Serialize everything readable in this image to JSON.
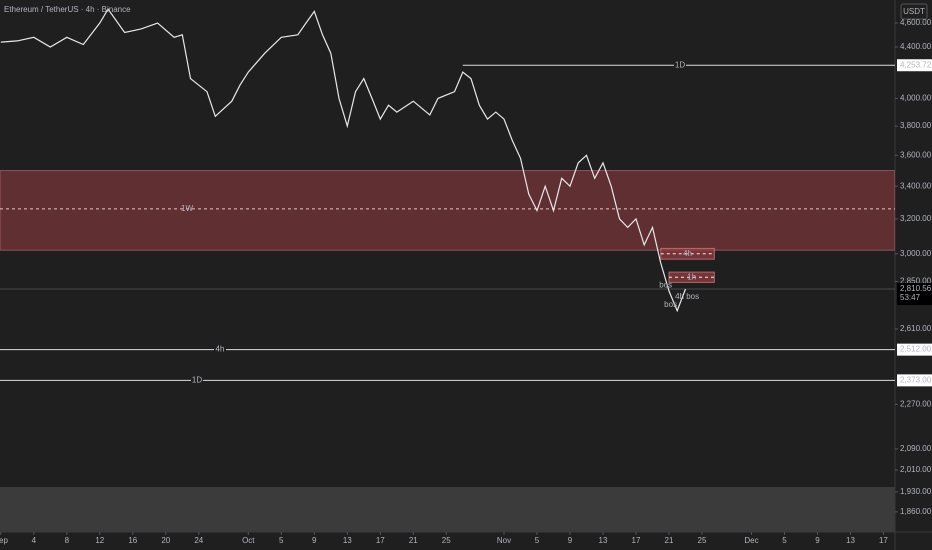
{
  "chart_data": {
    "type": "line",
    "title": "Ethereum / TetherUS · 4h · Binance",
    "currency_button": "USDT",
    "color": "#e8e8e8",
    "log_scale": true,
    "x": [
      0,
      2,
      4,
      6,
      8,
      10,
      12,
      13,
      15,
      17,
      19,
      21,
      22,
      23,
      25,
      26,
      28,
      29,
      30,
      32,
      34,
      36,
      37,
      38,
      39,
      40,
      41,
      42,
      43,
      44,
      45,
      46,
      47,
      48,
      50,
      52,
      53,
      55,
      56,
      57,
      58,
      59,
      60,
      61,
      62,
      63,
      64,
      65,
      66,
      67,
      68,
      69,
      70,
      71,
      72,
      73,
      74,
      75,
      76,
      77,
      78,
      79,
      80,
      81,
      82,
      83
    ],
    "values": [
      4440,
      4450,
      4480,
      4400,
      4480,
      4420,
      4600,
      4720,
      4520,
      4550,
      4600,
      4480,
      4500,
      4150,
      4050,
      3870,
      3980,
      4100,
      4200,
      4350,
      4480,
      4500,
      4600,
      4700,
      4500,
      4350,
      4000,
      3800,
      4050,
      4150,
      4000,
      3850,
      3950,
      3900,
      3980,
      3880,
      4000,
      4050,
      4200,
      4150,
      3950,
      3850,
      3900,
      3850,
      3700,
      3580,
      3350,
      3250,
      3400,
      3250,
      3450,
      3400,
      3550,
      3600,
      3450,
      3550,
      3400,
      3200,
      3150,
      3200,
      3050,
      3150,
      2950,
      2800,
      2700,
      2810.56
    ],
    "xlim": [
      -0.1,
      108.4
    ],
    "ylim": [
      1792,
      4800
    ],
    "xticks": [
      {
        "value": 0,
        "label": "Sep"
      },
      4,
      8,
      12,
      16,
      20,
      24,
      {
        "value": 30,
        "label": "Oct"
      },
      {
        "value": 34,
        "label": "5"
      },
      {
        "value": 38,
        "label": "9"
      },
      {
        "value": 42,
        "label": "13"
      },
      {
        "value": 46,
        "label": "17"
      },
      {
        "value": 50,
        "label": "21"
      },
      {
        "value": 54,
        "label": "25"
      },
      {
        "value": 61,
        "label": "Nov"
      },
      {
        "value": 65,
        "label": "5"
      },
      {
        "value": 69,
        "label": "9"
      },
      {
        "value": 73,
        "label": "13"
      },
      {
        "value": 77,
        "label": "17"
      },
      {
        "value": 81,
        "label": "21"
      },
      {
        "value": 85,
        "label": "25"
      },
      {
        "value": 91,
        "label": "Dec"
      },
      {
        "value": 95,
        "label": "5"
      },
      {
        "value": 99,
        "label": "9"
      },
      {
        "value": 103,
        "label": "13"
      },
      {
        "value": 107,
        "label": "17"
      }
    ],
    "yticks": [
      {
        "value": 4600,
        "label": "4,600.00"
      },
      {
        "value": 4400,
        "label": "4,400.00"
      },
      {
        "value": 4000,
        "label": "4,000.00"
      },
      {
        "value": 3800,
        "label": "3,800.00"
      },
      {
        "value": 3600,
        "label": "3,600.00"
      },
      {
        "value": 3400,
        "label": "3,400.00"
      },
      {
        "value": 3200,
        "label": "3,200.00"
      },
      {
        "value": 3000,
        "label": "3,000.00"
      },
      {
        "value": 2850,
        "label": "2,850.00"
      },
      {
        "value": 2610,
        "label": "2,610.00"
      },
      {
        "value": 2270,
        "label": "2,270.00"
      },
      {
        "value": 2090,
        "label": "2,090.00"
      },
      {
        "value": 2010,
        "label": "2,010.00"
      },
      {
        "value": 1930,
        "label": "1,930.00"
      },
      {
        "value": 1860,
        "label": "1,860.00"
      }
    ],
    "levels": [
      {
        "label": "1D",
        "price": 4253.72,
        "price_label": "4,253.72"
      },
      {
        "label": "4h",
        "price": 2512,
        "price_label": "2,512.00"
      },
      {
        "label": "1D",
        "price": 2373,
        "price_label": "2,373.00"
      }
    ],
    "zone": {
      "label": "1W",
      "top": 3500,
      "bottom": 3020,
      "mid": 3260
    },
    "boxes": [
      {
        "label": "4h",
        "top": 3030,
        "bottom": 2970,
        "x0": 80,
        "x1": 86.5
      },
      {
        "label": "1h",
        "top": 2900,
        "bottom": 2845,
        "x0": 81,
        "x1": 86.5
      }
    ],
    "current": {
      "price": 2810.56,
      "label": "2,810.56",
      "countdown": "53:47"
    },
    "annotations": [
      {
        "text": "bos",
        "x": 80.6,
        "price": 2830
      },
      {
        "text": "4h bos",
        "x": 83.2,
        "price": 2770
      },
      {
        "text": "bos",
        "x": 81.2,
        "price": 2730
      }
    ]
  }
}
